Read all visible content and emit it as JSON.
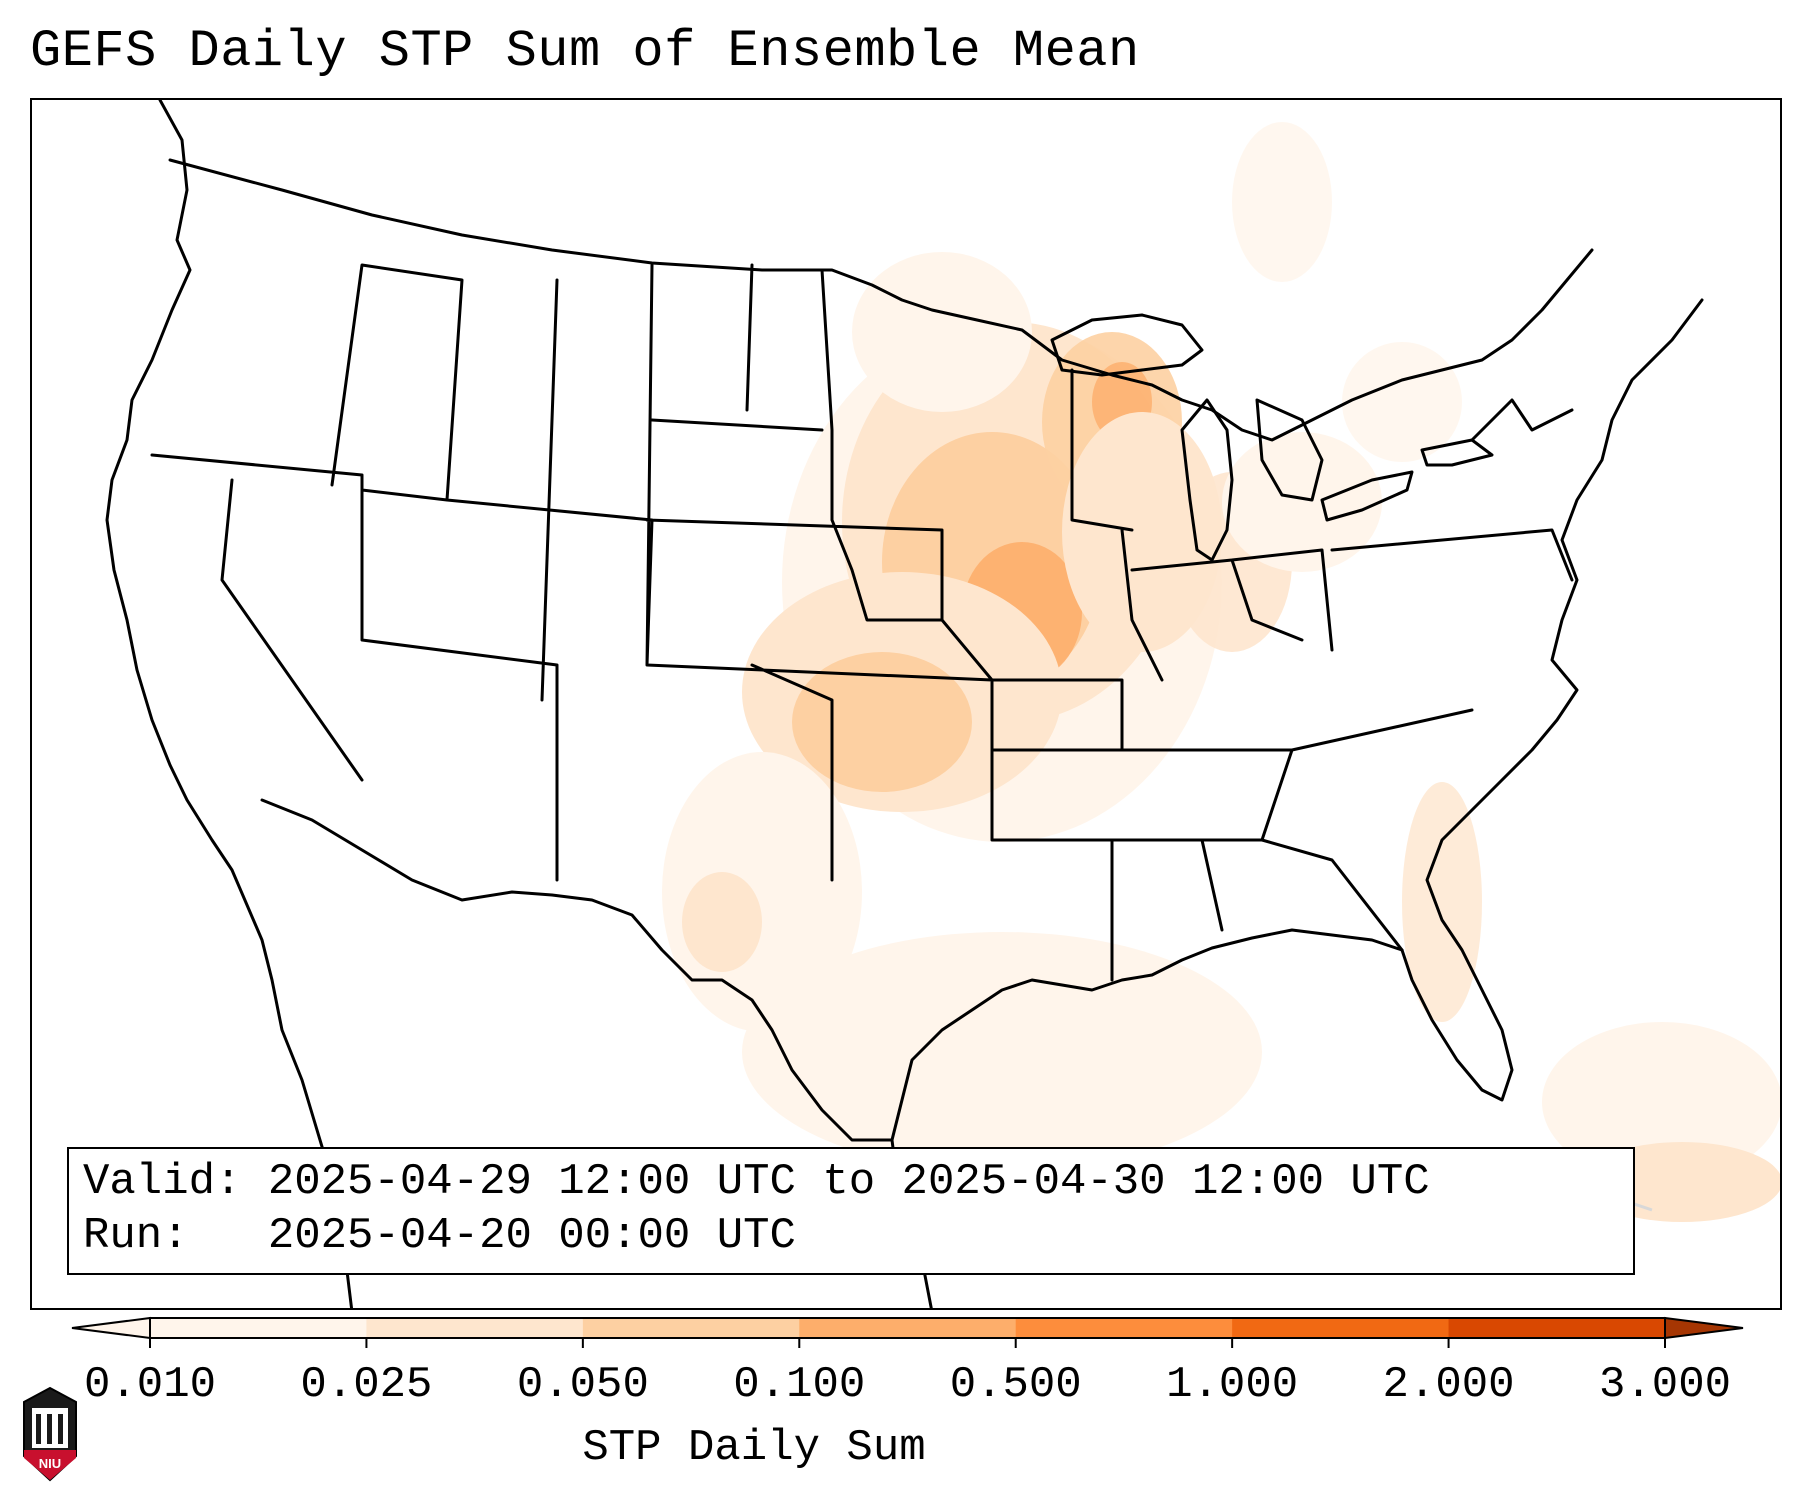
{
  "title": "GEFS Daily STP Sum of Ensemble Mean",
  "info": {
    "valid_label": "Valid:",
    "valid_text": "2025-04-29 12:00 UTC to 2025-04-30 12:00 UTC",
    "run_label": "Run:",
    "run_text": "2025-04-20 00:00 UTC"
  },
  "colorbar": {
    "label": "STP Daily Sum",
    "ticks": [
      "0.010",
      "0.025",
      "0.050",
      "0.100",
      "0.500",
      "1.000",
      "2.000",
      "3.000"
    ],
    "colors": [
      "#fff5eb",
      "#fee6ce",
      "#fdd0a2",
      "#fdae6b",
      "#fd8d3c",
      "#f16913",
      "#d94801",
      "#a63603"
    ],
    "extend": "both"
  },
  "logo": {
    "text": "NIU",
    "accent": "#c8102e"
  },
  "map": {
    "projection": "lambert-conformal",
    "region": "CONUS",
    "field_units": "STP daily sum"
  }
}
